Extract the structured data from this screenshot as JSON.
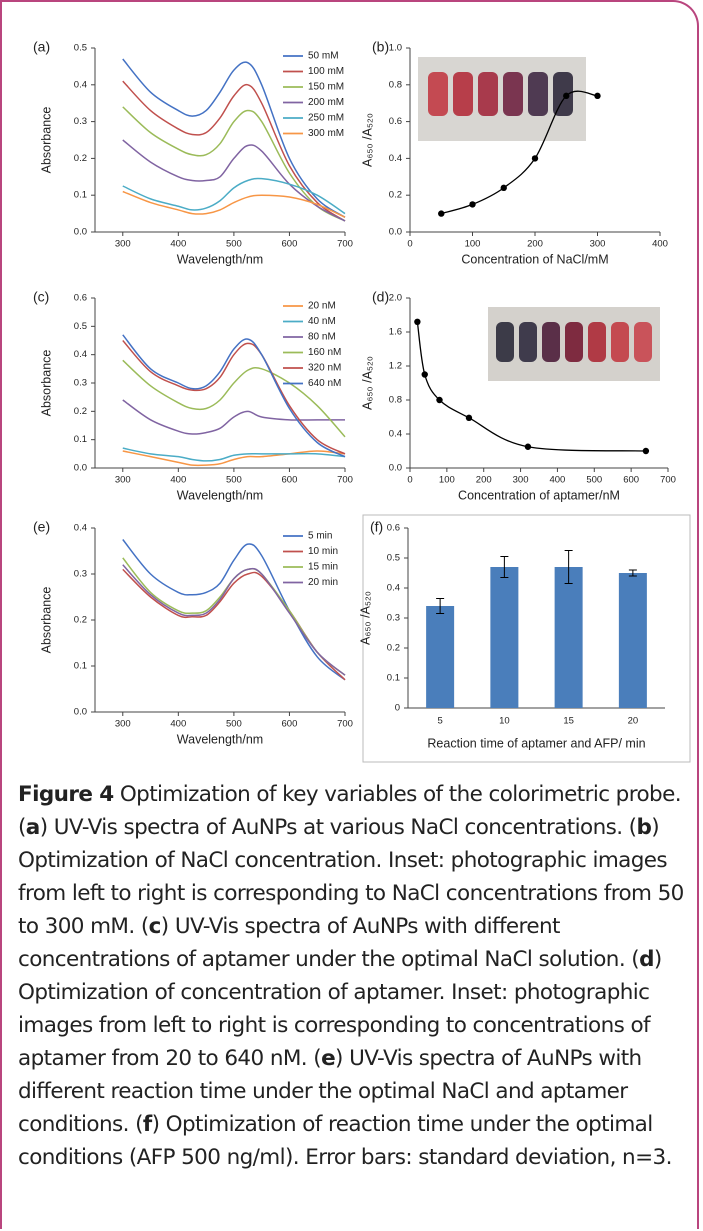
{
  "chart_data": [
    {
      "type": "line",
      "panel_label": "(a)",
      "xlabel": "Wavelength/nm",
      "ylabel": "Absorbance",
      "xlim": [
        250,
        700
      ],
      "ylim": [
        0,
        0.5
      ],
      "xticks": [
        300,
        400,
        500,
        600,
        700
      ],
      "yticks": [
        {
          "value": 0,
          "label": "0.0"
        },
        0.1,
        0.2,
        0.3,
        0.4,
        0.5
      ],
      "legend": "upper right",
      "x": [
        300,
        350,
        400,
        425,
        450,
        475,
        500,
        525,
        550,
        600,
        650,
        700
      ],
      "series": [
        {
          "name": "50   mM",
          "color": "#4472c4",
          "values": [
            0.47,
            0.38,
            0.33,
            0.315,
            0.33,
            0.38,
            0.44,
            0.46,
            0.4,
            0.2,
            0.09,
            0.04
          ]
        },
        {
          "name": "100 mM",
          "color": "#c0504d",
          "values": [
            0.41,
            0.33,
            0.28,
            0.265,
            0.27,
            0.31,
            0.37,
            0.4,
            0.35,
            0.18,
            0.08,
            0.03
          ]
        },
        {
          "name": "150 mM",
          "color": "#9bbb59",
          "values": [
            0.34,
            0.27,
            0.225,
            0.21,
            0.21,
            0.24,
            0.3,
            0.33,
            0.3,
            0.16,
            0.07,
            0.03
          ]
        },
        {
          "name": "200 mM",
          "color": "#8064a2",
          "values": [
            0.25,
            0.19,
            0.15,
            0.14,
            0.14,
            0.15,
            0.2,
            0.235,
            0.22,
            0.13,
            0.07,
            0.03
          ]
        },
        {
          "name": "250 mM",
          "color": "#4bacc6",
          "values": [
            0.125,
            0.09,
            0.07,
            0.06,
            0.065,
            0.085,
            0.12,
            0.14,
            0.145,
            0.13,
            0.1,
            0.05
          ]
        },
        {
          "name": "300 mM",
          "color": "#f79646",
          "values": [
            0.11,
            0.08,
            0.06,
            0.05,
            0.05,
            0.06,
            0.08,
            0.095,
            0.1,
            0.095,
            0.075,
            0.04
          ]
        }
      ]
    },
    {
      "type": "scatter",
      "panel_label": "(b)",
      "xlabel": "Concentration of NaCl/mM",
      "ylabel": "A₆₅₀ /A₅₂₀",
      "xlim": [
        0,
        400
      ],
      "ylim": [
        0,
        1
      ],
      "xticks": [
        0,
        100,
        200,
        300,
        400
      ],
      "yticks": [
        {
          "value": 0,
          "label": "0.0"
        },
        0.2,
        0.4,
        0.6,
        0.8,
        {
          "value": 1,
          "label": "1.0"
        }
      ],
      "curve": "smooth",
      "color": "#000000",
      "x": [
        50,
        100,
        150,
        200,
        250,
        300
      ],
      "values": [
        0.1,
        0.15,
        0.24,
        0.4,
        0.74,
        0.74
      ]
    },
    {
      "type": "line",
      "panel_label": "(c)",
      "xlabel": "Wavelength/nm",
      "ylabel": "Absorbance",
      "xlim": [
        250,
        700
      ],
      "ylim": [
        0,
        0.6
      ],
      "xticks": [
        300,
        400,
        500,
        600,
        700
      ],
      "yticks": [
        {
          "value": 0,
          "label": "0.0"
        },
        0.1,
        0.2,
        0.3,
        0.4,
        0.5,
        0.6
      ],
      "legend": "upper right",
      "x": [
        300,
        350,
        400,
        425,
        450,
        475,
        500,
        525,
        550,
        600,
        650,
        700
      ],
      "series": [
        {
          "name": "20   nM",
          "color": "#f79646",
          "values": [
            0.06,
            0.04,
            0.02,
            0.01,
            0.01,
            0.015,
            0.03,
            0.04,
            0.04,
            0.05,
            0.06,
            0.05
          ]
        },
        {
          "name": "40   nM",
          "color": "#4bacc6",
          "values": [
            0.07,
            0.05,
            0.04,
            0.03,
            0.025,
            0.03,
            0.045,
            0.05,
            0.05,
            0.05,
            0.05,
            0.04
          ]
        },
        {
          "name": "80   nM",
          "color": "#8064a2",
          "values": [
            0.24,
            0.17,
            0.13,
            0.12,
            0.125,
            0.14,
            0.18,
            0.2,
            0.18,
            0.17,
            0.17,
            0.17
          ]
        },
        {
          "name": "160 nM",
          "color": "#9bbb59",
          "values": [
            0.38,
            0.29,
            0.23,
            0.21,
            0.21,
            0.24,
            0.3,
            0.345,
            0.35,
            0.3,
            0.22,
            0.11
          ]
        },
        {
          "name": "320 nM",
          "color": "#c0504d",
          "values": [
            0.45,
            0.34,
            0.29,
            0.275,
            0.28,
            0.32,
            0.4,
            0.44,
            0.4,
            0.22,
            0.1,
            0.05
          ]
        },
        {
          "name": "640 nM",
          "color": "#4472c4",
          "values": [
            0.47,
            0.35,
            0.3,
            0.28,
            0.29,
            0.34,
            0.42,
            0.455,
            0.4,
            0.21,
            0.09,
            0.04
          ]
        }
      ]
    },
    {
      "type": "scatter",
      "panel_label": "(d)",
      "xlabel": "Concentration of aptamer/nM",
      "ylabel": "A₆₅₀ /A₅₂₀",
      "xlim": [
        0,
        700
      ],
      "ylim": [
        0,
        2
      ],
      "xticks": [
        0,
        100,
        200,
        300,
        400,
        500,
        600,
        700
      ],
      "yticks": [
        {
          "value": 0,
          "label": "0.0"
        },
        0.4,
        0.8,
        1.2,
        1.6,
        {
          "value": 2,
          "label": "2.0"
        }
      ],
      "curve": "smooth",
      "color": "#000000",
      "x": [
        20,
        40,
        80,
        160,
        320,
        640
      ],
      "values": [
        1.72,
        1.1,
        0.8,
        0.59,
        0.25,
        0.2
      ]
    },
    {
      "type": "line",
      "panel_label": "(e)",
      "xlabel": "Wavelength/nm",
      "ylabel": "Absorbance",
      "xlim": [
        250,
        700
      ],
      "ylim": [
        0,
        0.4
      ],
      "xticks": [
        300,
        400,
        500,
        600,
        700
      ],
      "yticks": [
        {
          "value": 0,
          "label": "0.0"
        },
        0.1,
        0.2,
        0.3,
        0.4
      ],
      "legend": "upper right",
      "x": [
        300,
        350,
        400,
        425,
        450,
        475,
        500,
        525,
        550,
        600,
        650,
        700
      ],
      "series": [
        {
          "name": "5   min",
          "color": "#4472c4",
          "values": [
            0.375,
            0.3,
            0.26,
            0.255,
            0.26,
            0.28,
            0.33,
            0.365,
            0.34,
            0.22,
            0.12,
            0.07
          ]
        },
        {
          "name": "10 min",
          "color": "#c0504d",
          "values": [
            0.31,
            0.25,
            0.21,
            0.207,
            0.21,
            0.24,
            0.28,
            0.3,
            0.295,
            0.22,
            0.13,
            0.07
          ]
        },
        {
          "name": "15 min",
          "color": "#9bbb59",
          "values": [
            0.335,
            0.26,
            0.22,
            0.215,
            0.22,
            0.25,
            0.29,
            0.31,
            0.3,
            0.22,
            0.13,
            0.08
          ]
        },
        {
          "name": "20 min",
          "color": "#8064a2",
          "values": [
            0.32,
            0.255,
            0.215,
            0.21,
            0.215,
            0.245,
            0.29,
            0.31,
            0.3,
            0.215,
            0.13,
            0.08
          ]
        }
      ]
    },
    {
      "type": "bar",
      "panel_label": "(f)",
      "xlabel": "Reaction time of aptamer and AFP/ min",
      "ylabel": "A₆₅₀ /A₅₂₀",
      "ylim": [
        0,
        0.6
      ],
      "yticks": [
        0,
        0.1,
        0.2,
        0.3,
        0.4,
        0.5,
        0.6
      ],
      "color": "#4a7ebb",
      "categories": [
        "5",
        "10",
        "15",
        "20"
      ],
      "values": [
        0.34,
        0.47,
        0.47,
        0.45
      ],
      "errors": [
        0.025,
        0.035,
        0.055,
        0.01
      ]
    }
  ],
  "caption": [
    {
      "text": "Figure 4",
      "bold": true
    },
    {
      "text": " Optimization of key variables of the colorimetric probe. ("
    },
    {
      "text": "a",
      "bold": true
    },
    {
      "text": ") UV-Vis spectra of AuNPs at various NaCl concentrations. ("
    },
    {
      "text": "b",
      "bold": true
    },
    {
      "text": ") Optimization of NaCl concentration. Inset: photographic images from left to right is corresponding to NaCl concentrations from 50 to 300 mM. ("
    },
    {
      "text": "c",
      "bold": true
    },
    {
      "text": ") UV-Vis spectra of AuNPs with different concentrations of aptamer under the optimal NaCl solution. ("
    },
    {
      "text": "d",
      "bold": true
    },
    {
      "text": ") Optimization of concentration of aptamer. Inset: photographic images from left to right is corresponding to concentrations of aptamer from 20 to 640 nM. ("
    },
    {
      "text": "e",
      "bold": true
    },
    {
      "text": ") UV-Vis spectra of AuNPs with different reaction time under the optimal NaCl and aptamer conditions. ("
    },
    {
      "text": "f",
      "bold": true
    },
    {
      "text": ") Optimization of reaction time under the optimal conditions (AFP 500 ng/ml). Error bars: standard deviation, n=3."
    }
  ]
}
